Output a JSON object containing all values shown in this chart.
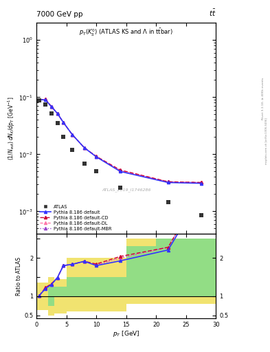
{
  "title_left": "7000 GeV pp",
  "title_right": "tt",
  "plot_label": "p_{T}(K^{0}_{S}) (ATLAS KS and #Lambda in ttbar)",
  "ylabel_main": "(1/N_{evt}) dN_{K}/dp_{T} [GeV^{-1}]",
  "ylabel_ratio": "Ratio to ATLAS",
  "xlabel": "p_{T} [GeV]",
  "atlas_ref": "ATLAS_2019_I1746286",
  "rivet_label": "Rivet 3.1.10, ≥ 400k events",
  "mcplots_label": "mcplots.cern.ch [arXiv:1306.3436]",
  "xlim": [
    0,
    30
  ],
  "ylim_main": [
    0.0004,
    2.0
  ],
  "ylim_ratio": [
    0.42,
    2.62
  ],
  "atlas_x": [
    0.5,
    1.5,
    2.5,
    3.5,
    4.5,
    6.0,
    8.0,
    10.0,
    14.0,
    22.0,
    27.5
  ],
  "atlas_y": [
    0.088,
    0.075,
    0.052,
    0.035,
    0.02,
    0.012,
    0.0068,
    0.005,
    0.0026,
    0.00145,
    0.00085
  ],
  "pythia_x": [
    0.5,
    1.5,
    2.5,
    3.5,
    4.5,
    6.0,
    8.0,
    10.0,
    14.0,
    22.0,
    27.5
  ],
  "pythia_default_y": [
    0.09,
    0.09,
    0.068,
    0.052,
    0.036,
    0.022,
    0.013,
    0.009,
    0.005,
    0.0032,
    0.0031
  ],
  "pythia_cd_y": [
    0.09,
    0.092,
    0.069,
    0.052,
    0.036,
    0.022,
    0.013,
    0.0092,
    0.0053,
    0.0033,
    0.0032
  ],
  "pythia_dl_y": [
    0.09,
    0.092,
    0.068,
    0.052,
    0.036,
    0.022,
    0.013,
    0.0091,
    0.0052,
    0.0033,
    0.0032
  ],
  "pythia_mbr_y": [
    0.09,
    0.092,
    0.068,
    0.052,
    0.036,
    0.022,
    0.013,
    0.0091,
    0.0052,
    0.0033,
    0.0032
  ],
  "color_atlas": "#333333",
  "color_default": "#3333ff",
  "color_cd": "#cc0033",
  "color_dl": "#ff77aa",
  "color_mbr": "#9944cc",
  "yellow_x_edges": [
    0,
    1,
    2,
    3,
    5,
    7,
    15,
    20,
    30
  ],
  "yellow_lo": [
    0.65,
    0.65,
    0.5,
    0.55,
    0.6,
    0.6,
    0.8,
    0.8,
    0.8
  ],
  "yellow_hi": [
    1.35,
    1.35,
    1.5,
    1.45,
    2.0,
    2.0,
    2.5,
    2.5,
    2.5
  ],
  "green_x_edges": [
    0,
    1,
    2,
    3,
    5,
    7,
    15,
    20,
    30
  ],
  "green_lo": [
    1.0,
    1.0,
    0.75,
    1.0,
    1.0,
    1.0,
    1.0,
    1.0,
    1.0
  ],
  "green_hi": [
    1.0,
    1.0,
    1.25,
    1.25,
    1.5,
    1.5,
    2.3,
    2.5,
    2.5
  ]
}
